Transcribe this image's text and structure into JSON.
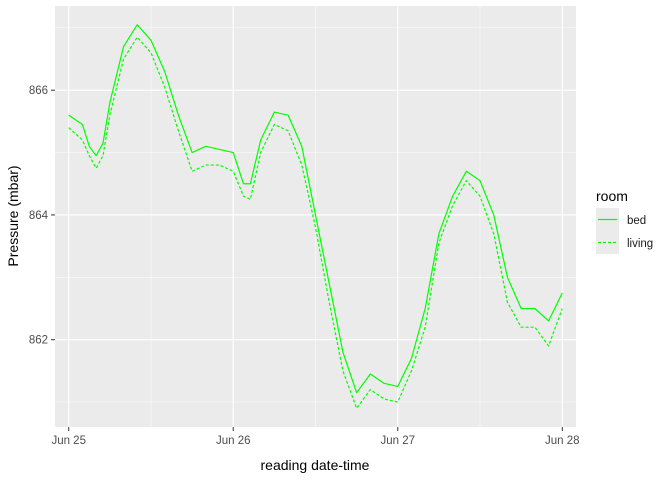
{
  "chart_data": {
    "type": "line",
    "xlabel": "reading date-time",
    "ylabel": "Pressure (mbar)",
    "x_ticks": [
      "Jun 25",
      "Jun 26",
      "Jun 27",
      "Jun 28"
    ],
    "y_ticks": [
      862,
      864,
      866
    ],
    "xlim": [
      "2023-06-24T22:00",
      "2023-06-28T02:00"
    ],
    "ylim": [
      860.6,
      867.35
    ],
    "grid": true,
    "panel_background": "#ebebeb",
    "grid_color": "#ffffff",
    "legend": {
      "title": "room",
      "position": "right",
      "entries": [
        {
          "label": "bed",
          "linetype": "solid"
        },
        {
          "label": "living",
          "linetype": "dashed"
        }
      ]
    },
    "series": [
      {
        "name": "bed",
        "color": "#00ff00",
        "linetype": "solid",
        "x": [
          "2023-06-25T00:00",
          "2023-06-25T02:00",
          "2023-06-25T03:00",
          "2023-06-25T04:00",
          "2023-06-25T05:00",
          "2023-06-25T06:00",
          "2023-06-25T08:00",
          "2023-06-25T10:00",
          "2023-06-25T12:00",
          "2023-06-25T14:00",
          "2023-06-25T16:00",
          "2023-06-25T18:00",
          "2023-06-25T20:00",
          "2023-06-25T22:00",
          "2023-06-26T00:00",
          "2023-06-26T01:30",
          "2023-06-26T02:30",
          "2023-06-26T04:00",
          "2023-06-26T06:00",
          "2023-06-26T08:00",
          "2023-06-26T10:00",
          "2023-06-26T12:00",
          "2023-06-26T14:00",
          "2023-06-26T16:00",
          "2023-06-26T18:00",
          "2023-06-26T20:00",
          "2023-06-26T22:00",
          "2023-06-27T00:00",
          "2023-06-27T02:00",
          "2023-06-27T04:00",
          "2023-06-27T06:00",
          "2023-06-27T08:00",
          "2023-06-27T10:00",
          "2023-06-27T12:00",
          "2023-06-27T14:00",
          "2023-06-27T16:00",
          "2023-06-27T18:00",
          "2023-06-27T20:00",
          "2023-06-27T22:00",
          "2023-06-28T00:00"
        ],
        "values": [
          865.6,
          865.45,
          865.1,
          864.95,
          865.15,
          865.8,
          866.7,
          867.05,
          866.8,
          866.3,
          865.6,
          865.0,
          865.1,
          865.05,
          865.0,
          864.5,
          864.5,
          865.2,
          865.65,
          865.6,
          865.1,
          864.0,
          862.9,
          861.8,
          861.15,
          861.45,
          861.3,
          861.25,
          861.7,
          862.5,
          863.7,
          864.3,
          864.7,
          864.55,
          864.0,
          863.0,
          862.5,
          862.5,
          862.3,
          862.75
        ]
      },
      {
        "name": "living",
        "color": "#00ff00",
        "linetype": "dashed",
        "x": [
          "2023-06-25T00:00",
          "2023-06-25T02:00",
          "2023-06-25T03:00",
          "2023-06-25T04:00",
          "2023-06-25T05:00",
          "2023-06-25T06:00",
          "2023-06-25T08:00",
          "2023-06-25T10:00",
          "2023-06-25T12:00",
          "2023-06-25T14:00",
          "2023-06-25T16:00",
          "2023-06-25T18:00",
          "2023-06-25T20:00",
          "2023-06-25T22:00",
          "2023-06-26T00:00",
          "2023-06-26T01:30",
          "2023-06-26T02:30",
          "2023-06-26T04:00",
          "2023-06-26T06:00",
          "2023-06-26T08:00",
          "2023-06-26T10:00",
          "2023-06-26T12:00",
          "2023-06-26T14:00",
          "2023-06-26T16:00",
          "2023-06-26T18:00",
          "2023-06-26T20:00",
          "2023-06-26T22:00",
          "2023-06-27T00:00",
          "2023-06-27T02:00",
          "2023-06-27T04:00",
          "2023-06-27T06:00",
          "2023-06-27T08:00",
          "2023-06-27T10:00",
          "2023-06-27T12:00",
          "2023-06-27T14:00",
          "2023-06-27T16:00",
          "2023-06-27T18:00",
          "2023-06-27T20:00",
          "2023-06-27T22:00",
          "2023-06-28T00:00"
        ],
        "values": [
          865.4,
          865.2,
          864.95,
          864.75,
          864.95,
          865.6,
          866.5,
          866.85,
          866.6,
          866.05,
          865.35,
          864.7,
          864.8,
          864.8,
          864.7,
          864.3,
          864.25,
          865.0,
          865.45,
          865.35,
          864.8,
          863.8,
          862.6,
          861.5,
          860.9,
          861.2,
          861.05,
          861.0,
          861.5,
          862.2,
          863.55,
          864.15,
          864.55,
          864.3,
          863.7,
          862.6,
          862.2,
          862.2,
          861.9,
          862.5
        ]
      }
    ]
  }
}
